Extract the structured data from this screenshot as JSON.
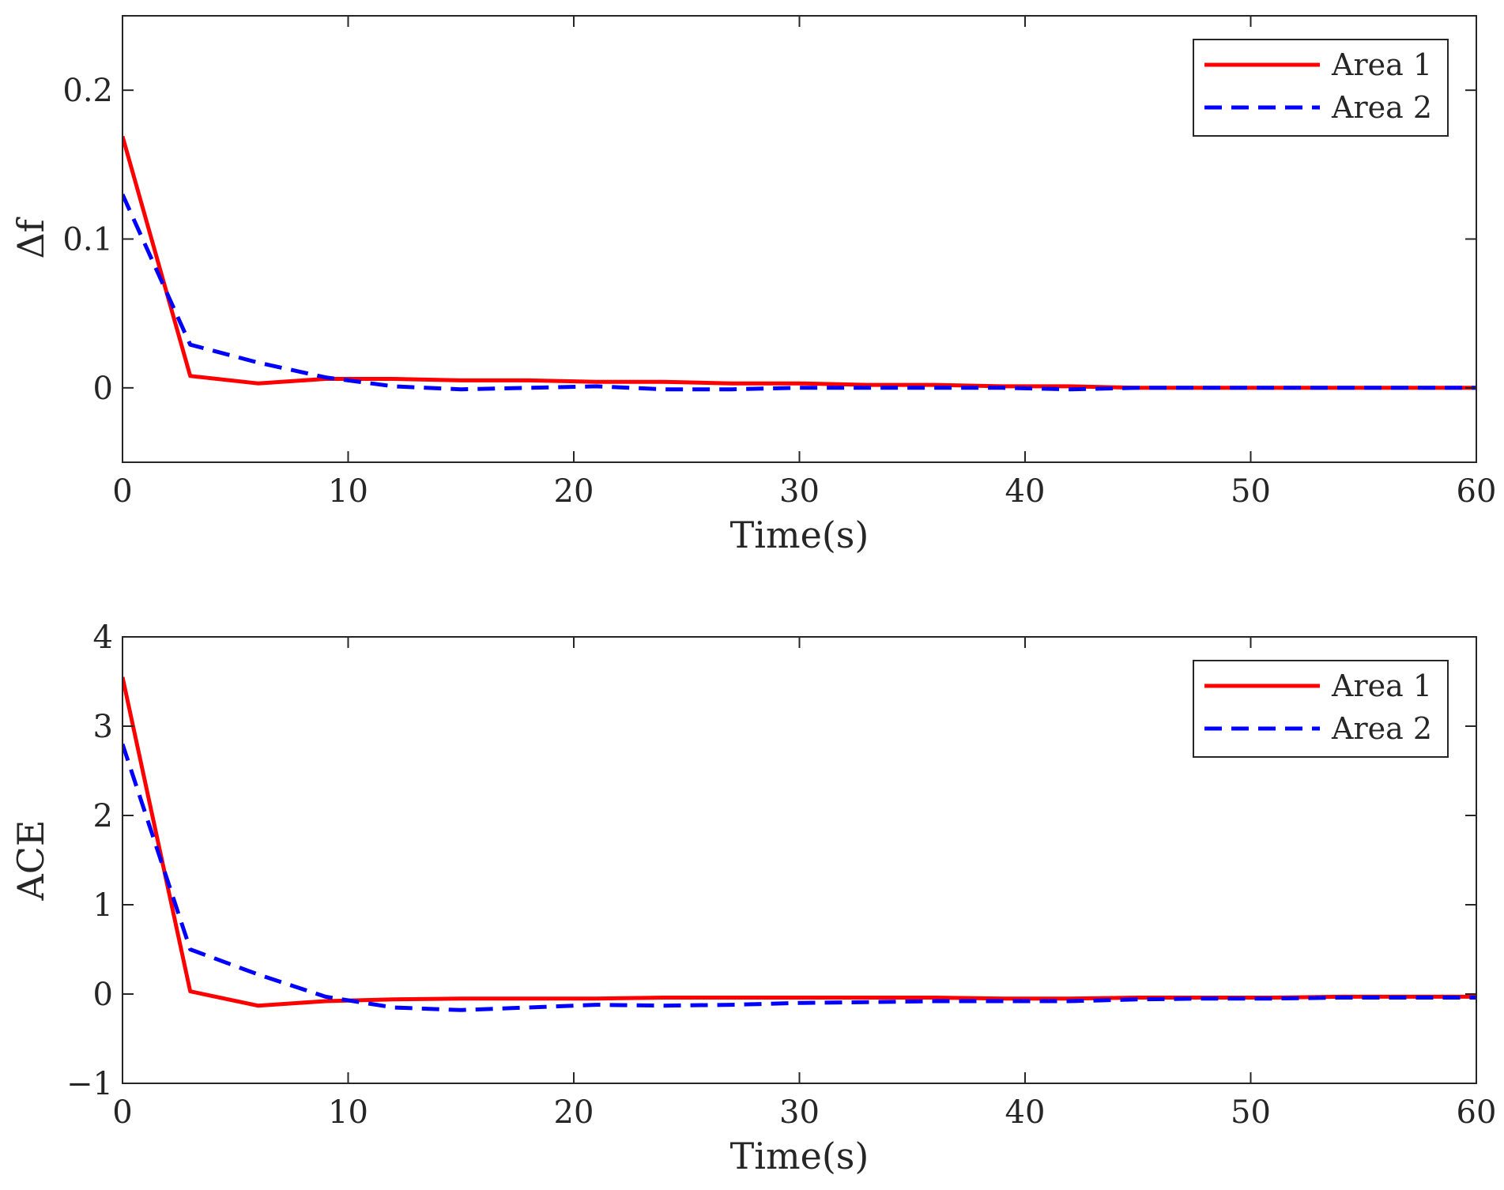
{
  "colors": {
    "area1": "#ff0000",
    "area2": "#0000ff",
    "axis": "#262626",
    "background": "#ffffff"
  },
  "chart_data": [
    {
      "type": "line",
      "title": "",
      "xlabel": "Time(s)",
      "ylabel": "Δf",
      "xlim": [
        0,
        60
      ],
      "ylim": [
        -0.05,
        0.25
      ],
      "xticks": [
        0,
        10,
        20,
        30,
        40,
        50,
        60
      ],
      "xtick_labels": [
        "0",
        "10",
        "20",
        "30",
        "40",
        "50",
        "60"
      ],
      "yticks": [
        0,
        0.1,
        0.2
      ],
      "ytick_labels": [
        "0",
        "0.1",
        "0.2"
      ],
      "grid": false,
      "legend_position": "top-right",
      "series": [
        {
          "name": "Area 1",
          "style": "solid",
          "x": [
            0,
            3,
            6,
            9,
            12,
            15,
            18,
            21,
            24,
            27,
            30,
            33,
            36,
            39,
            42,
            45,
            48,
            51,
            54,
            57,
            60
          ],
          "y": [
            0.169,
            0.008,
            0.003,
            0.006,
            0.006,
            0.005,
            0.005,
            0.004,
            0.004,
            0.003,
            0.003,
            0.002,
            0.002,
            0.001,
            0.001,
            0.0,
            0.0,
            0.0,
            0.0,
            0.0,
            0.0
          ]
        },
        {
          "name": "Area 2",
          "style": "dashed",
          "x": [
            0,
            3,
            6,
            9,
            12,
            15,
            18,
            21,
            24,
            27,
            30,
            33,
            36,
            39,
            42,
            45,
            48,
            51,
            54,
            57,
            60
          ],
          "y": [
            0.13,
            0.029,
            0.017,
            0.007,
            0.001,
            -0.001,
            0.0,
            0.001,
            -0.001,
            -0.001,
            0.0,
            0.0,
            0.0,
            0.0,
            -0.001,
            0.0,
            0.0,
            0.0,
            0.0,
            0.0,
            0.0
          ]
        }
      ]
    },
    {
      "type": "line",
      "title": "",
      "xlabel": "Time(s)",
      "ylabel": "ACE",
      "xlim": [
        0,
        60
      ],
      "ylim": [
        -1,
        4
      ],
      "xticks": [
        0,
        10,
        20,
        30,
        40,
        50,
        60
      ],
      "xtick_labels": [
        "0",
        "10",
        "20",
        "30",
        "40",
        "50",
        "60"
      ],
      "yticks": [
        -1,
        0,
        1,
        2,
        3,
        4
      ],
      "ytick_labels": [
        "−1",
        "0",
        "1",
        "2",
        "3",
        "4"
      ],
      "grid": false,
      "legend_position": "top-right",
      "series": [
        {
          "name": "Area 1",
          "style": "solid",
          "x": [
            0,
            3,
            6,
            9,
            12,
            15,
            18,
            21,
            24,
            27,
            30,
            33,
            36,
            39,
            42,
            45,
            48,
            51,
            54,
            57,
            60
          ],
          "y": [
            3.55,
            0.03,
            -0.13,
            -0.08,
            -0.06,
            -0.05,
            -0.05,
            -0.05,
            -0.04,
            -0.04,
            -0.04,
            -0.04,
            -0.04,
            -0.05,
            -0.05,
            -0.04,
            -0.04,
            -0.04,
            -0.03,
            -0.03,
            -0.03
          ]
        },
        {
          "name": "Area 2",
          "style": "dashed",
          "x": [
            0,
            3,
            6,
            9,
            12,
            15,
            18,
            21,
            24,
            27,
            30,
            33,
            36,
            39,
            42,
            45,
            48,
            51,
            54,
            57,
            60
          ],
          "y": [
            2.8,
            0.5,
            0.22,
            -0.03,
            -0.15,
            -0.18,
            -0.15,
            -0.12,
            -0.13,
            -0.12,
            -0.1,
            -0.09,
            -0.08,
            -0.08,
            -0.08,
            -0.06,
            -0.05,
            -0.05,
            -0.04,
            -0.04,
            -0.04
          ]
        }
      ]
    }
  ]
}
